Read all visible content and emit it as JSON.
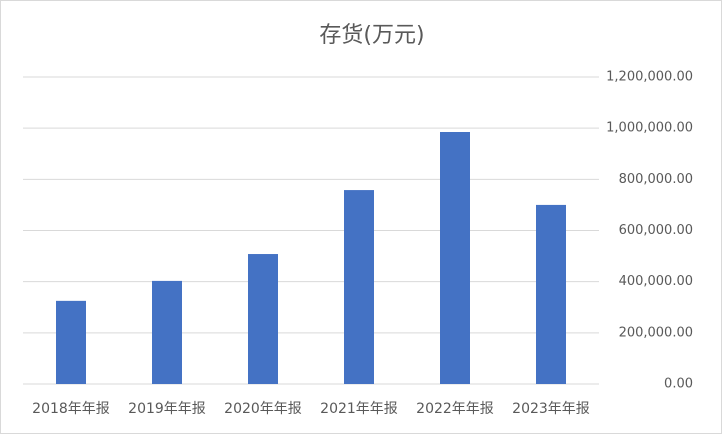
{
  "chart_data": {
    "type": "bar",
    "title": "存货(万元)",
    "categories": [
      "2018年年报",
      "2019年年报",
      "2020年年报",
      "2021年年报",
      "2022年年报",
      "2023年年报"
    ],
    "values": [
      325000,
      403000,
      508000,
      758000,
      985000,
      700000
    ],
    "color": "#4472c4",
    "ylim": [
      0,
      1200000
    ],
    "yticks": [
      {
        "value": 0,
        "label": "0.00"
      },
      {
        "value": 200000,
        "label": "200,000.00"
      },
      {
        "value": 400000,
        "label": "400,000.00"
      },
      {
        "value": 600000,
        "label": "600,000.00"
      },
      {
        "value": 800000,
        "label": "800,000.00"
      },
      {
        "value": 1000000,
        "label": "1,000,000.00"
      },
      {
        "value": 1200000,
        "label": "1,200,000.00"
      }
    ],
    "grid": true
  }
}
